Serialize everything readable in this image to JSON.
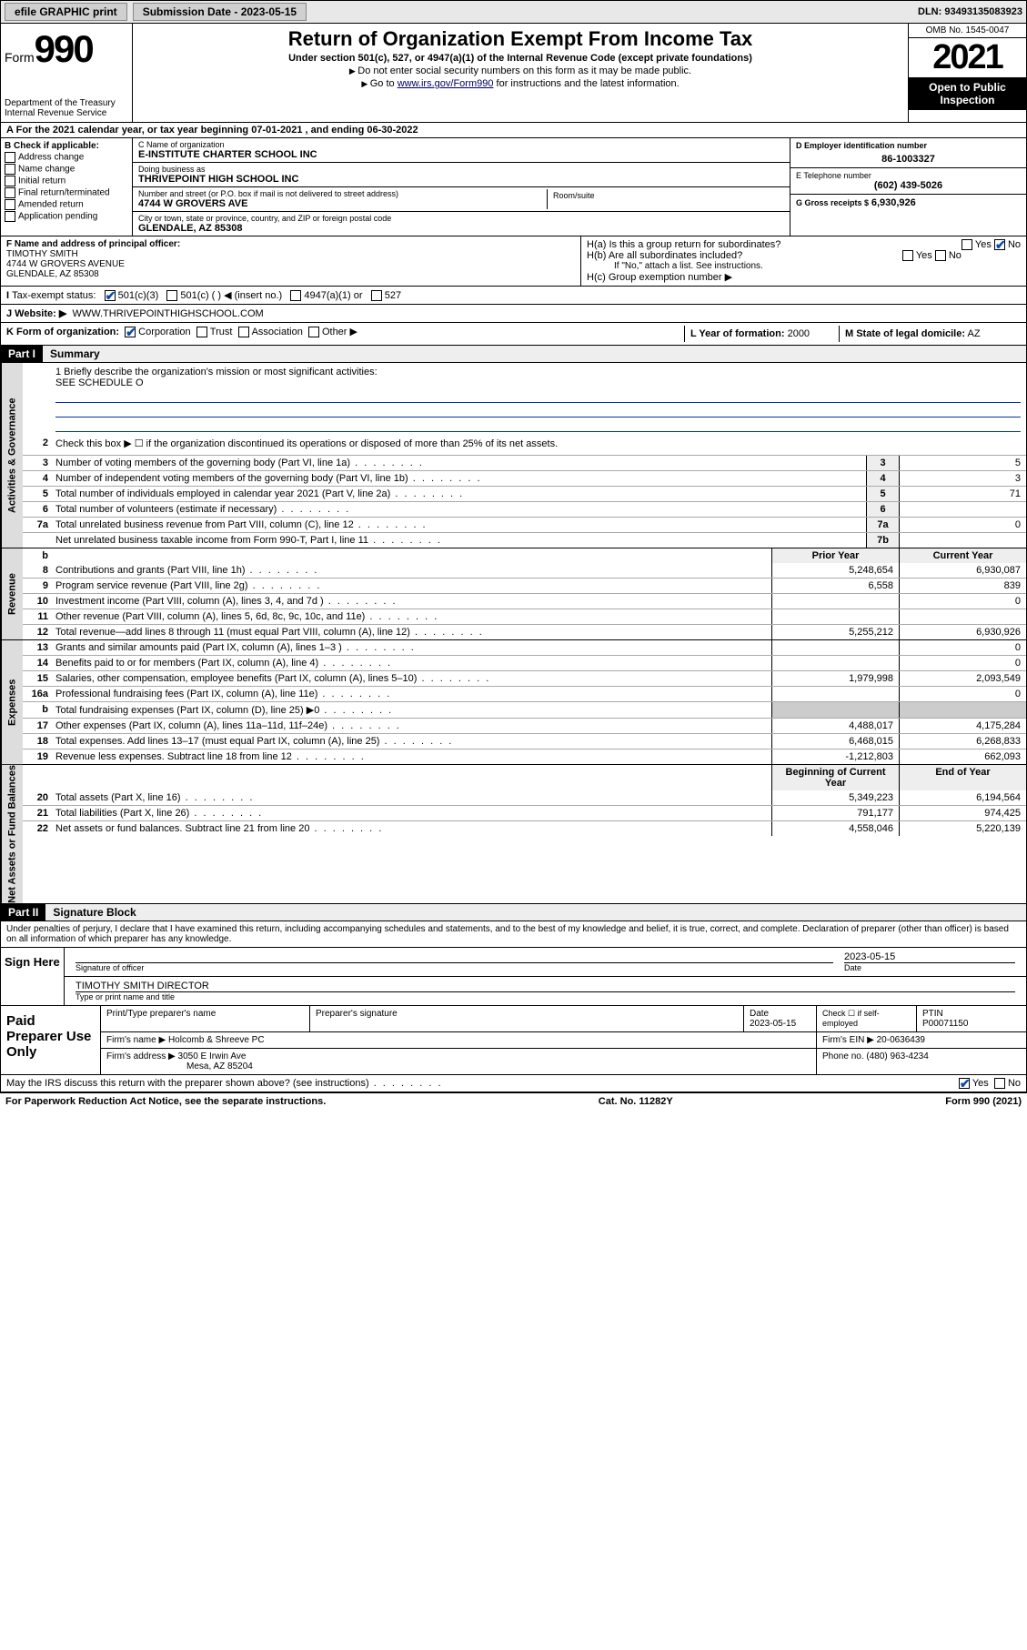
{
  "topbar": {
    "efile": "efile GRAPHIC print",
    "submission_label": "Submission Date - 2023-05-15",
    "dln": "DLN: 93493135083923"
  },
  "header": {
    "form_label": "Form",
    "form_number": "990",
    "dept": "Department of the Treasury",
    "irs": "Internal Revenue Service",
    "title": "Return of Organization Exempt From Income Tax",
    "subtitle": "Under section 501(c), 527, or 4947(a)(1) of the Internal Revenue Code (except private foundations)",
    "note1": "Do not enter social security numbers on this form as it may be made public.",
    "note2_prefix": "Go to ",
    "note2_link": "www.irs.gov/Form990",
    "note2_suffix": " for instructions and the latest information.",
    "omb": "OMB No. 1545-0047",
    "year": "2021",
    "open": "Open to Public Inspection"
  },
  "row_a": "For the 2021 calendar year, or tax year beginning 07-01-2021   , and ending 06-30-2022",
  "b": {
    "hdr": "B Check if applicable:",
    "items": [
      "Address change",
      "Name change",
      "Initial return",
      "Final return/terminated",
      "Amended return",
      "Application pending"
    ]
  },
  "c": {
    "name_lbl": "C Name of organization",
    "name": "E-INSTITUTE CHARTER SCHOOL INC",
    "dba_lbl": "Doing business as",
    "dba": "THRIVEPOINT HIGH SCHOOL INC",
    "street_lbl": "Number and street (or P.O. box if mail is not delivered to street address)",
    "room_lbl": "Room/suite",
    "street": "4744 W GROVERS AVE",
    "city_lbl": "City or town, state or province, country, and ZIP or foreign postal code",
    "city": "GLENDALE, AZ  85308"
  },
  "d": {
    "ein_lbl": "D Employer identification number",
    "ein": "86-1003327",
    "tel_lbl": "E Telephone number",
    "tel": "(602) 439-5026",
    "gross_lbl": "G Gross receipts $",
    "gross": "6,930,926"
  },
  "f": {
    "lbl": "F Name and address of principal officer:",
    "name": "TIMOTHY SMITH",
    "addr1": "4744 W GROVERS AVENUE",
    "addr2": "GLENDALE, AZ  85308"
  },
  "h": {
    "a": "H(a)  Is this a group return for subordinates?",
    "b": "H(b)  Are all subordinates included?",
    "note": "If \"No,\" attach a list. See instructions.",
    "c": "H(c)  Group exemption number ▶"
  },
  "i": {
    "lbl": "Tax-exempt status:",
    "opts": [
      "501(c)(3)",
      "501(c) (  ) ◀ (insert no.)",
      "4947(a)(1) or",
      "527"
    ]
  },
  "j": {
    "lbl": "J   Website: ▶",
    "val": "WWW.THRIVEPOINTHIGHSCHOOL.COM"
  },
  "k": {
    "lbl": "K Form of organization:",
    "opts": [
      "Corporation",
      "Trust",
      "Association",
      "Other ▶"
    ]
  },
  "l": {
    "lbl": "L Year of formation:",
    "val": "2000"
  },
  "m": {
    "lbl": "M State of legal domicile:",
    "val": "AZ"
  },
  "part1": {
    "hdr": "Part I",
    "title": "Summary"
  },
  "mission": {
    "q": "1  Briefly describe the organization's mission or most significant activities:",
    "a": "SEE SCHEDULE O"
  },
  "lines_gov": [
    {
      "n": "2",
      "d": "Check this box ▶ ☐  if the organization discontinued its operations or disposed of more than 25% of its net assets."
    },
    {
      "n": "3",
      "d": "Number of voting members of the governing body (Part VI, line 1a)",
      "box": "3",
      "v": "5"
    },
    {
      "n": "4",
      "d": "Number of independent voting members of the governing body (Part VI, line 1b)",
      "box": "4",
      "v": "3"
    },
    {
      "n": "5",
      "d": "Total number of individuals employed in calendar year 2021 (Part V, line 2a)",
      "box": "5",
      "v": "71"
    },
    {
      "n": "6",
      "d": "Total number of volunteers (estimate if necessary)",
      "box": "6",
      "v": ""
    },
    {
      "n": "7a",
      "d": "Total unrelated business revenue from Part VIII, column (C), line 12",
      "box": "7a",
      "v": "0"
    },
    {
      "n": "",
      "d": "Net unrelated business taxable income from Form 990-T, Part I, line 11",
      "box": "7b",
      "v": ""
    }
  ],
  "hdr_cols": {
    "b": "b",
    "py": "Prior Year",
    "cy": "Current Year"
  },
  "lines_rev": [
    {
      "n": "8",
      "d": "Contributions and grants (Part VIII, line 1h)",
      "py": "5,248,654",
      "cy": "6,930,087"
    },
    {
      "n": "9",
      "d": "Program service revenue (Part VIII, line 2g)",
      "py": "6,558",
      "cy": "839"
    },
    {
      "n": "10",
      "d": "Investment income (Part VIII, column (A), lines 3, 4, and 7d )",
      "py": "",
      "cy": "0"
    },
    {
      "n": "11",
      "d": "Other revenue (Part VIII, column (A), lines 5, 6d, 8c, 9c, 10c, and 11e)",
      "py": "",
      "cy": ""
    },
    {
      "n": "12",
      "d": "Total revenue—add lines 8 through 11 (must equal Part VIII, column (A), line 12)",
      "py": "5,255,212",
      "cy": "6,930,926"
    }
  ],
  "lines_exp": [
    {
      "n": "13",
      "d": "Grants and similar amounts paid (Part IX, column (A), lines 1–3 )",
      "py": "",
      "cy": "0"
    },
    {
      "n": "14",
      "d": "Benefits paid to or for members (Part IX, column (A), line 4)",
      "py": "",
      "cy": "0"
    },
    {
      "n": "15",
      "d": "Salaries, other compensation, employee benefits (Part IX, column (A), lines 5–10)",
      "py": "1,979,998",
      "cy": "2,093,549"
    },
    {
      "n": "16a",
      "d": "Professional fundraising fees (Part IX, column (A), line 11e)",
      "py": "",
      "cy": "0"
    },
    {
      "n": "b",
      "d": "Total fundraising expenses (Part IX, column (D), line 25) ▶0",
      "py": "grey",
      "cy": "grey"
    },
    {
      "n": "17",
      "d": "Other expenses (Part IX, column (A), lines 11a–11d, 11f–24e)",
      "py": "4,488,017",
      "cy": "4,175,284"
    },
    {
      "n": "18",
      "d": "Total expenses. Add lines 13–17 (must equal Part IX, column (A), line 25)",
      "py": "6,468,015",
      "cy": "6,268,833"
    },
    {
      "n": "19",
      "d": "Revenue less expenses. Subtract line 18 from line 12",
      "py": "-1,212,803",
      "cy": "662,093"
    }
  ],
  "hdr_cols2": {
    "py": "Beginning of Current Year",
    "cy": "End of Year"
  },
  "lines_net": [
    {
      "n": "20",
      "d": "Total assets (Part X, line 16)",
      "py": "5,349,223",
      "cy": "6,194,564"
    },
    {
      "n": "21",
      "d": "Total liabilities (Part X, line 26)",
      "py": "791,177",
      "cy": "974,425"
    },
    {
      "n": "22",
      "d": "Net assets or fund balances. Subtract line 21 from line 20",
      "py": "4,558,046",
      "cy": "5,220,139"
    }
  ],
  "part2": {
    "hdr": "Part II",
    "title": "Signature Block"
  },
  "sig_decl": "Under penalties of perjury, I declare that I have examined this return, including accompanying schedules and statements, and to the best of my knowledge and belief, it is true, correct, and complete. Declaration of preparer (other than officer) is based on all information of which preparer has any knowledge.",
  "sign": {
    "here": "Sign Here",
    "sig_lbl": "Signature of officer",
    "date_lbl": "Date",
    "date": "2023-05-15",
    "name": "TIMOTHY SMITH  DIRECTOR",
    "name_lbl": "Type or print name and title"
  },
  "prep": {
    "hdr": "Paid Preparer Use Only",
    "cols": [
      "Print/Type preparer's name",
      "Preparer's signature",
      "Date",
      "",
      "PTIN"
    ],
    "date": "2023-05-15",
    "check_lbl": "Check ☐ if self-employed",
    "ptin": "P00071150",
    "firm_name_lbl": "Firm's name    ▶",
    "firm_name": "Holcomb & Shreeve PC",
    "firm_ein_lbl": "Firm's EIN ▶",
    "firm_ein": "20-0636439",
    "firm_addr_lbl": "Firm's address ▶",
    "firm_addr1": "3050 E Irwin Ave",
    "firm_addr2": "Mesa, AZ  85204",
    "phone_lbl": "Phone no.",
    "phone": "(480) 963-4234"
  },
  "discuss": "May the IRS discuss this return with the preparer shown above? (see instructions)",
  "footer": {
    "left": "For Paperwork Reduction Act Notice, see the separate instructions.",
    "mid": "Cat. No. 11282Y",
    "right": "Form 990 (2021)"
  },
  "yes": "Yes",
  "no": "No",
  "side_labels": {
    "gov": "Activities & Governance",
    "rev": "Revenue",
    "exp": "Expenses",
    "net": "Net Assets or Fund Balances"
  }
}
